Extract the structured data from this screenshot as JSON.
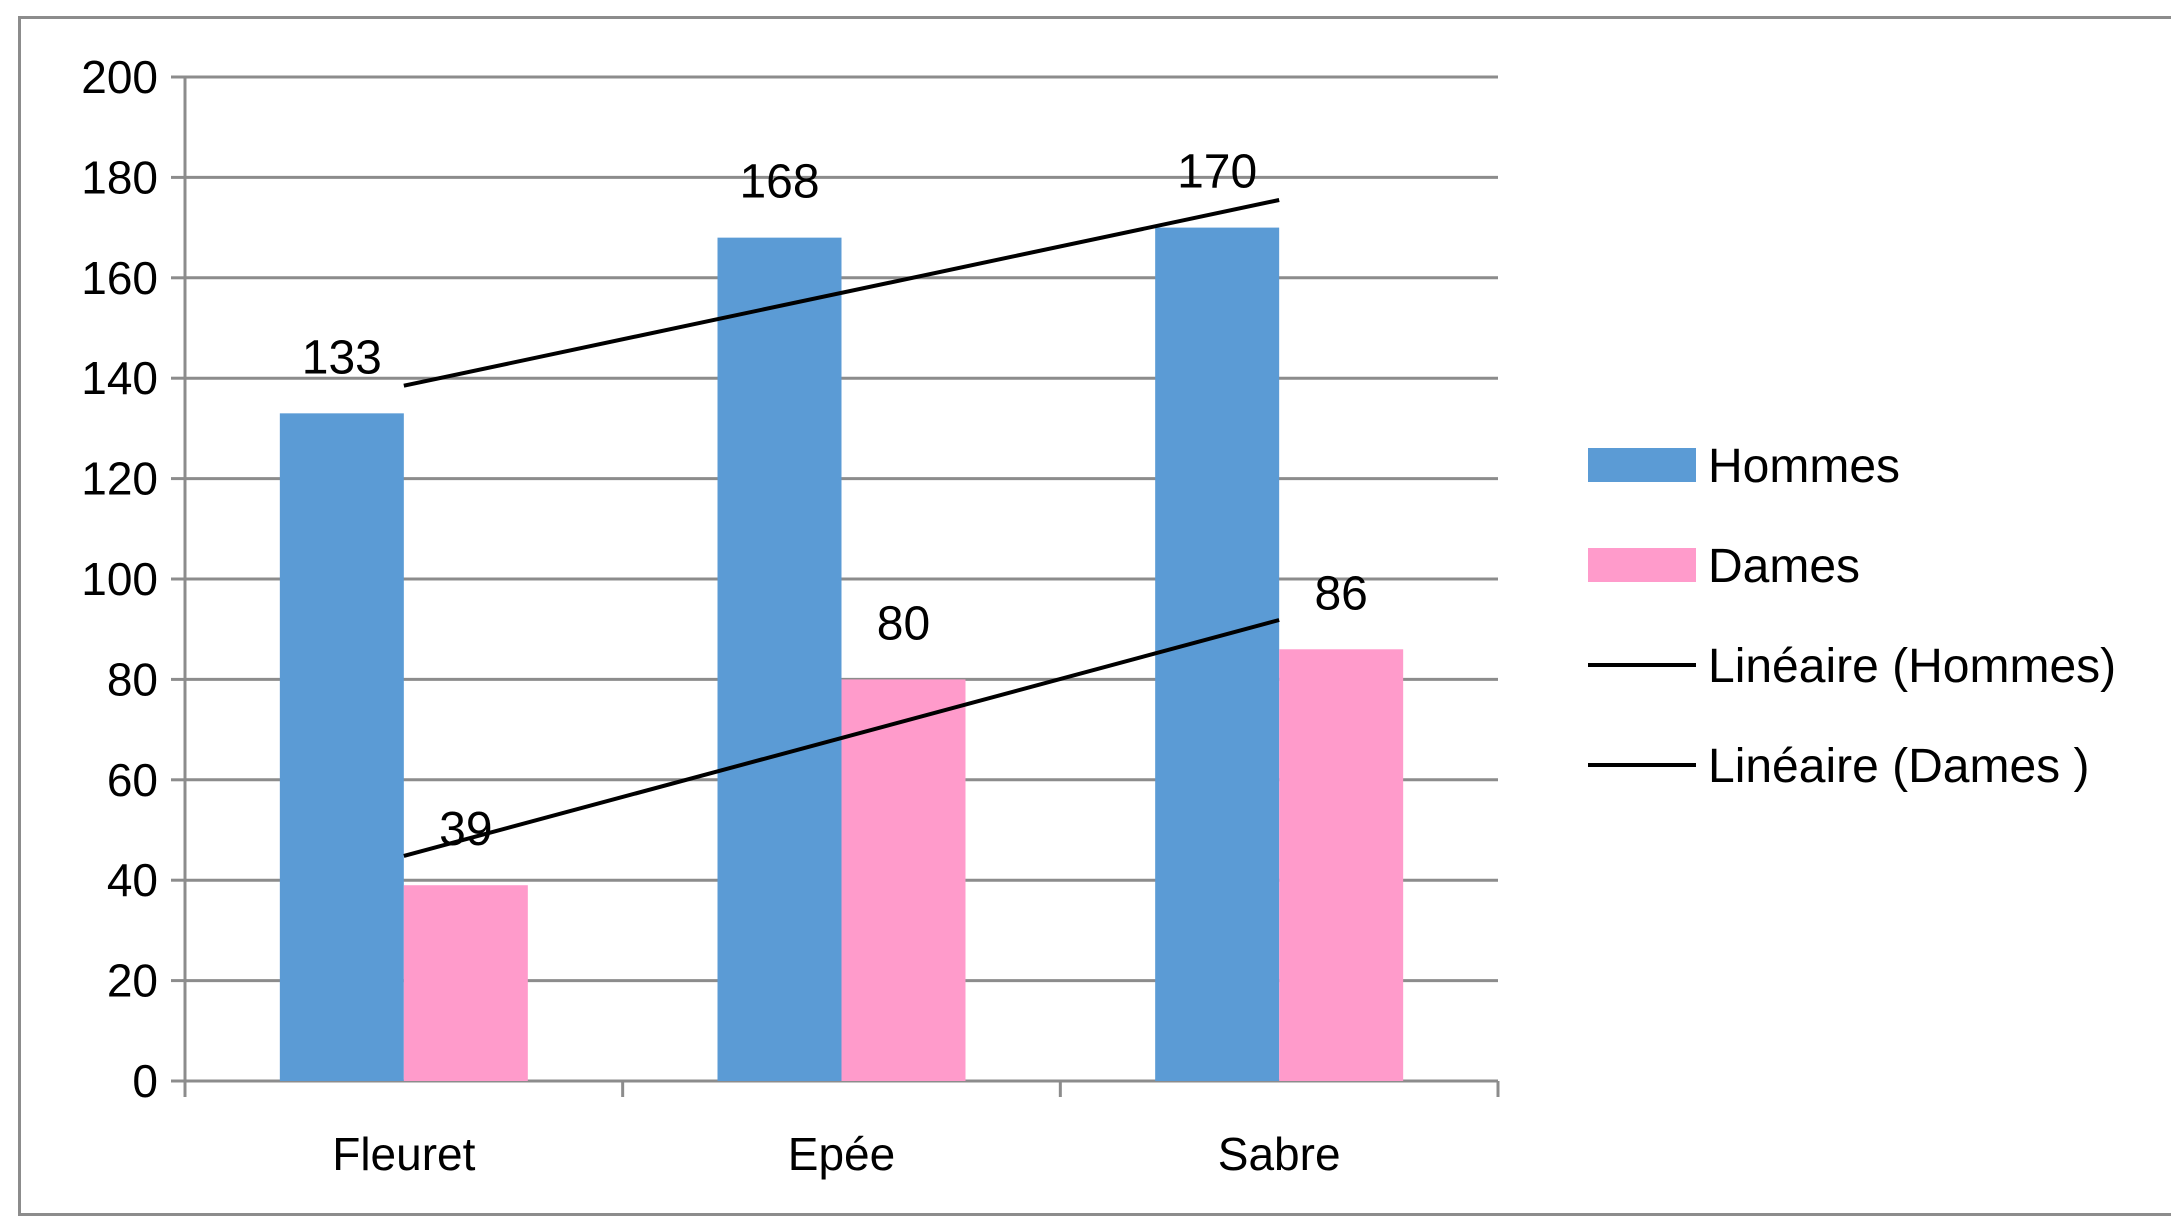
{
  "chart_data": {
    "type": "bar",
    "categories": [
      "Fleuret",
      "Epée",
      "Sabre"
    ],
    "series": [
      {
        "name": "Hommes",
        "values": [
          133,
          168,
          170
        ],
        "color": "#5b9bd5"
      },
      {
        "name": "Dames",
        "values": [
          39,
          80,
          86
        ],
        "color": "#ff9bcb"
      }
    ],
    "data_labels": [
      {
        "series": "Hommes",
        "labels": [
          "133",
          "168",
          "170"
        ]
      },
      {
        "series": "Dames",
        "labels": [
          "39",
          "80",
          "86"
        ]
      }
    ],
    "trendlines": [
      {
        "name": "Linéaire (Hommes)",
        "type": "linear",
        "color": "#000000"
      },
      {
        "name": "Linéaire (Dames )",
        "type": "linear",
        "color": "#000000"
      }
    ],
    "legend_order": [
      "Hommes",
      "Dames",
      "Linéaire (Hommes)",
      "Linéaire (Dames )"
    ],
    "ylim": [
      0,
      200
    ],
    "yticks": [
      0,
      20,
      40,
      60,
      80,
      100,
      120,
      140,
      160,
      180,
      200
    ],
    "grid": true,
    "legend_position": "right",
    "title": "",
    "xlabel": "",
    "ylabel": ""
  }
}
